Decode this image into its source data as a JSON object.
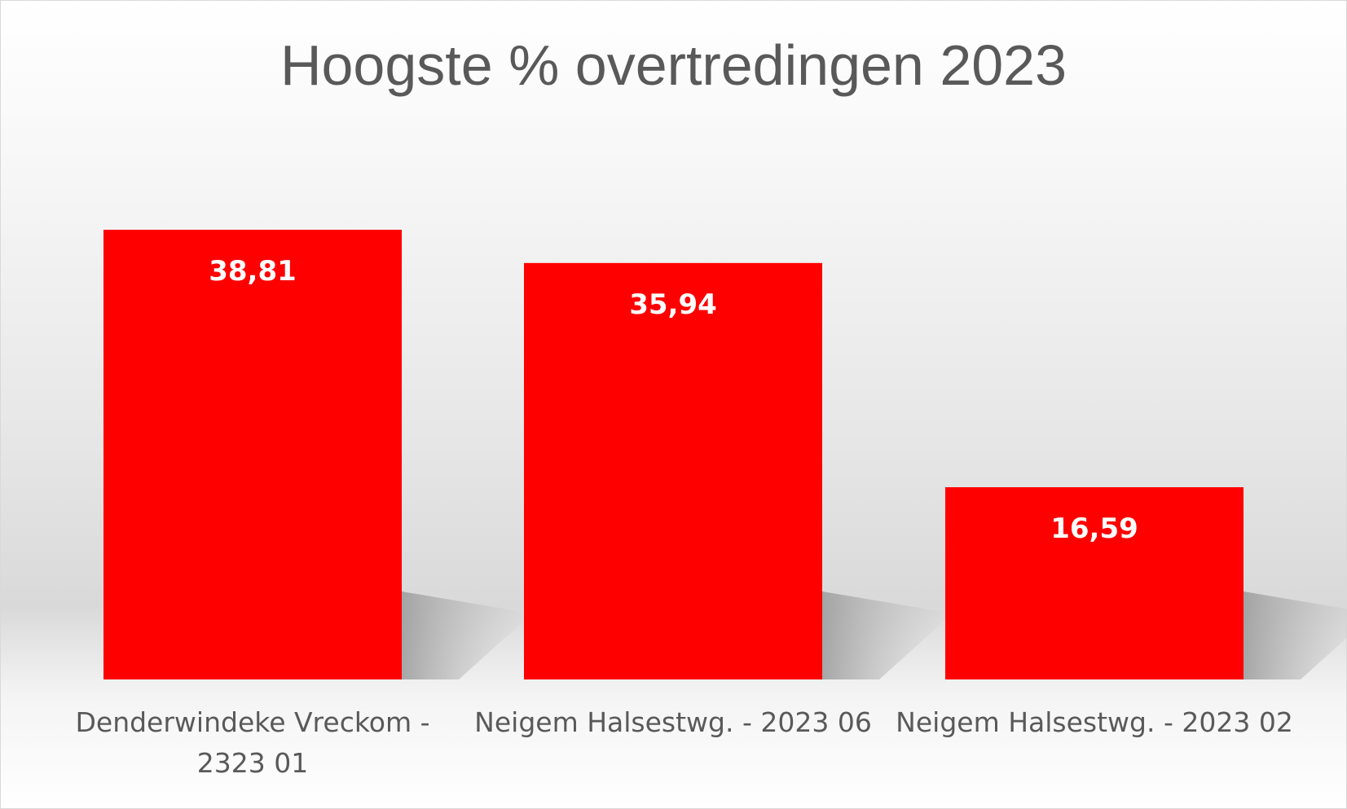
{
  "chart_data": {
    "type": "bar",
    "title": "Hoogste % overtredingen 2023",
    "xlabel": "",
    "ylabel": "",
    "categories": [
      "Denderwindeke Vreckom - 2323 01",
      "Neigem Halsestwg. - 2023 06",
      "Neigem Halsestwg. - 2023 02"
    ],
    "values": [
      38.81,
      35.94,
      16.59
    ],
    "value_labels": [
      "38,81",
      "35,94",
      "16,59"
    ],
    "ylim": [
      0,
      38.81
    ],
    "grid": false,
    "legend": "none",
    "bar_color": "#ff0000",
    "label_color": "#ffffff"
  }
}
